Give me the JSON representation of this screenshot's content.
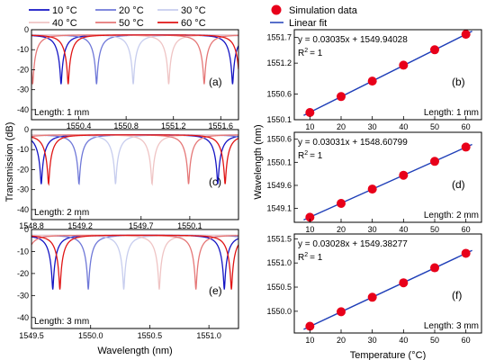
{
  "colors": {
    "10": "#1515c4",
    "20": "#6f78d8",
    "30": "#c7cdee",
    "40": "#efc4c4",
    "50": "#e57777",
    "60": "#e01515",
    "marker": "#e8001a",
    "fit": "#1f3fb8"
  },
  "chart_data": [
    {
      "id": "a",
      "type": "line",
      "panel_label": "(a)",
      "annotation": "Length: 1 mm",
      "xlim": [
        1550.0,
        1551.75
      ],
      "ylim": [
        -45,
        0
      ],
      "xticks": [
        "1550.4",
        "1550.8",
        "1551.2",
        "1551.6"
      ],
      "xtick_values": [
        1550.4,
        1550.8,
        1551.2,
        1551.6
      ],
      "yticks": [
        "0",
        "-10",
        "-20",
        "-30",
        "-40"
      ],
      "ytick_values": [
        0,
        -10,
        -20,
        -30,
        -40
      ],
      "resonance_dips": {
        "10": 1550.25,
        "20": 1550.55,
        "30": 1550.86,
        "40": 1551.16,
        "50": 1551.46,
        "60": 1551.76
      },
      "series": [
        {
          "name": "10 °C",
          "key": "10"
        },
        {
          "name": "20 °C",
          "key": "20"
        },
        {
          "name": "30 °C",
          "key": "30"
        },
        {
          "name": "40 °C",
          "key": "40"
        },
        {
          "name": "50 °C",
          "key": "50"
        },
        {
          "name": "60 °C",
          "key": "60"
        }
      ]
    },
    {
      "id": "c",
      "type": "line",
      "panel_label": "(c)",
      "annotation": "Length: 2 mm",
      "xlim": [
        1548.8,
        1550.5
      ],
      "ylim": [
        -45,
        0
      ],
      "xticks": [
        "1548.8",
        "1549.2",
        "1549.7",
        "1550.1"
      ],
      "xtick_values": [
        1548.8,
        1549.2,
        1549.7,
        1550.1
      ],
      "yticks": [
        "0",
        "-10",
        "-20",
        "-30",
        "-40"
      ],
      "ytick_values": [
        0,
        -10,
        -20,
        -30,
        -40
      ],
      "resonance_dips": {
        "10": 1548.88,
        "20": 1549.19,
        "30": 1549.49,
        "40": 1549.79,
        "50": 1550.09,
        "60": 1550.39
      },
      "series": [
        {
          "name": "10 °C",
          "key": "10"
        },
        {
          "name": "20 °C",
          "key": "20"
        },
        {
          "name": "30 °C",
          "key": "30"
        },
        {
          "name": "40 °C",
          "key": "40"
        },
        {
          "name": "50 °C",
          "key": "50"
        },
        {
          "name": "60 °C",
          "key": "60"
        }
      ]
    },
    {
      "id": "e",
      "type": "line",
      "panel_label": "(e)",
      "annotation": "Length: 3 mm",
      "xlim": [
        1549.5,
        1551.25
      ],
      "ylim": [
        -45,
        0
      ],
      "xticks": [
        "1549.5",
        "1550.0",
        "1550.5",
        "1551.0"
      ],
      "xtick_values": [
        1549.5,
        1550.0,
        1550.5,
        1551.0
      ],
      "yticks": [
        "0",
        "-10",
        "-20",
        "-30",
        "-40"
      ],
      "ytick_values": [
        0,
        -10,
        -20,
        -30,
        -40
      ],
      "xlabel": "Wavelength (nm)",
      "resonance_dips": {
        "10": 1549.68,
        "20": 1549.98,
        "30": 1550.28,
        "40": 1550.58,
        "50": 1550.89,
        "60": 1551.19
      },
      "series": [
        {
          "name": "10 °C",
          "key": "10"
        },
        {
          "name": "20 °C",
          "key": "20"
        },
        {
          "name": "30 °C",
          "key": "30"
        },
        {
          "name": "40 °C",
          "key": "40"
        },
        {
          "name": "50 °C",
          "key": "50"
        },
        {
          "name": "60 °C",
          "key": "60"
        }
      ]
    },
    {
      "id": "b",
      "type": "scatter",
      "panel_label": "(b)",
      "annotation": "Length: 1 mm",
      "equation": "y = 0.03035x + 1549.94028",
      "r2_label": "R",
      "r2_value": "= 1",
      "x": [
        10,
        20,
        30,
        40,
        50,
        60
      ],
      "y": [
        1550.24,
        1550.55,
        1550.85,
        1551.16,
        1551.46,
        1551.76
      ],
      "fit": {
        "slope": 0.03035,
        "intercept": 1549.94028
      },
      "xlim": [
        5,
        65
      ],
      "ylim": [
        1550.1,
        1551.85
      ],
      "xticks": [
        "10",
        "20",
        "30",
        "40",
        "50",
        "60"
      ],
      "xtick_values": [
        10,
        20,
        30,
        40,
        50,
        60
      ],
      "yticks": [
        "1550.1",
        "1550.6",
        "1551.2",
        "1551.7"
      ],
      "ytick_values": [
        1550.1,
        1550.6,
        1551.2,
        1551.7
      ]
    },
    {
      "id": "d",
      "type": "scatter",
      "panel_label": "(d)",
      "annotation": "Length: 2 mm",
      "equation": "y = 0.03031x + 1548.60799",
      "r2_label": "R",
      "r2_value": "= 1",
      "x": [
        10,
        20,
        30,
        40,
        50,
        60
      ],
      "y": [
        1548.91,
        1549.21,
        1549.52,
        1549.82,
        1550.12,
        1550.43
      ],
      "fit": {
        "slope": 0.03031,
        "intercept": 1548.60799
      },
      "xlim": [
        5,
        65
      ],
      "ylim": [
        1548.8,
        1550.75
      ],
      "xticks": [
        "10",
        "20",
        "30",
        "40",
        "50",
        "60"
      ],
      "xtick_values": [
        10,
        20,
        30,
        40,
        50,
        60
      ],
      "yticks": [
        "1549.1",
        "1549.6",
        "1550.1",
        "1550.6"
      ],
      "ytick_values": [
        1549.1,
        1549.6,
        1550.1,
        1550.6
      ]
    },
    {
      "id": "f",
      "type": "scatter",
      "panel_label": "(f)",
      "annotation": "Length: 3 mm",
      "equation": "y = 0.03028x + 1549.38277",
      "r2_label": "R",
      "r2_value": "= 1",
      "x": [
        10,
        20,
        30,
        40,
        50,
        60
      ],
      "y": [
        1549.69,
        1549.99,
        1550.29,
        1550.59,
        1550.9,
        1551.2
      ],
      "fit": {
        "slope": 0.03028,
        "intercept": 1549.38277
      },
      "xlim": [
        5,
        65
      ],
      "ylim": [
        1549.55,
        1551.6
      ],
      "xticks": [
        "10",
        "20",
        "30",
        "40",
        "50",
        "60"
      ],
      "xtick_values": [
        10,
        20,
        30,
        40,
        50,
        60
      ],
      "yticks": [
        "1550.0",
        "1550.5",
        "1551.0",
        "1551.5"
      ],
      "ytick_values": [
        1550.0,
        1550.5,
        1551.0,
        1551.5
      ],
      "xlabel": "Temperature (°C)"
    }
  ],
  "left_legend": {
    "entries": [
      {
        "name": "10 °C",
        "key": "10"
      },
      {
        "name": "20 °C",
        "key": "20"
      },
      {
        "name": "30 °C",
        "key": "30"
      },
      {
        "name": "40 °C",
        "key": "40"
      },
      {
        "name": "50 °C",
        "key": "50"
      },
      {
        "name": "60 °C",
        "key": "60"
      }
    ]
  },
  "right_legend": {
    "marker_label": "Simulation data",
    "line_label": "Linear fit"
  },
  "left_ylabel": "Transmission (dB)",
  "right_ylabel": "Wavelength (nm)",
  "r2_superscript": "2"
}
